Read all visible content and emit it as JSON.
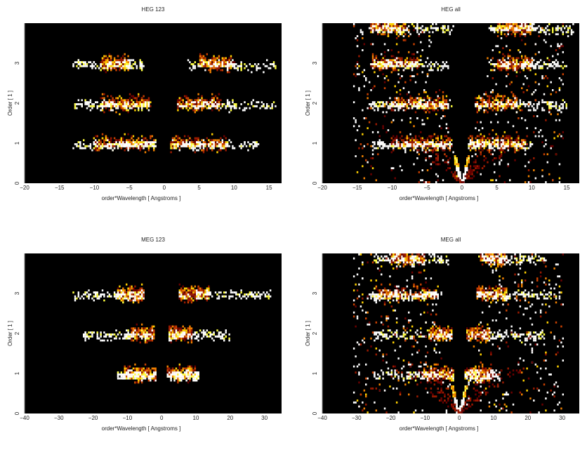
{
  "chart_data": [
    {
      "type": "heatmap",
      "title": "HEG 123",
      "xlabel": "order*Wavelength [ Angstroms ]",
      "ylabel": "Order [ 1 ]",
      "xlim": [
        -20,
        16.8
      ],
      "ylim": [
        0,
        4
      ],
      "xticks": [
        -20,
        -15,
        -10,
        -5,
        0,
        5,
        10,
        15
      ],
      "yticks": [
        0,
        1,
        2,
        3
      ],
      "wedge": false,
      "bands": [
        {
          "order": 3,
          "xmin": -13,
          "xmax": -3,
          "core": [
            -9,
            -5
          ]
        },
        {
          "order": 3,
          "xmin": 3.5,
          "xmax": 16,
          "core": [
            5,
            10
          ]
        },
        {
          "order": 2,
          "xmin": -13,
          "xmax": -2,
          "core": [
            -9,
            -2
          ]
        },
        {
          "order": 2,
          "xmin": 2,
          "xmax": 16,
          "core": [
            2,
            8
          ]
        },
        {
          "order": 1,
          "xmin": -13,
          "xmax": -1.3,
          "core": [
            -10,
            -1.3
          ]
        },
        {
          "order": 1,
          "xmin": 1,
          "xmax": 13.5,
          "core": [
            1,
            9
          ]
        }
      ]
    },
    {
      "type": "heatmap",
      "title": "HEG all",
      "xlabel": "order*Wavelength [ Angstroms ]",
      "ylabel": "Order [ 1 ]",
      "xlim": [
        -20,
        16.8
      ],
      "ylim": [
        0,
        4
      ],
      "xticks": [
        -20,
        -15,
        -10,
        -5,
        0,
        5,
        10,
        15
      ],
      "yticks": [
        0,
        1,
        2,
        3
      ],
      "wedge": true,
      "bands": [
        {
          "order": 3.9,
          "xmin": -13,
          "xmax": -1,
          "core": [
            -13,
            -8
          ]
        },
        {
          "order": 3.9,
          "xmin": 4,
          "xmax": 16,
          "core": [
            5,
            10
          ]
        },
        {
          "order": 3,
          "xmin": -13,
          "xmax": -2,
          "core": [
            -13,
            -6
          ]
        },
        {
          "order": 3,
          "xmin": 4,
          "xmax": 15,
          "core": [
            5,
            10
          ]
        },
        {
          "order": 2,
          "xmin": -13,
          "xmax": -1.5,
          "core": [
            -10,
            -2
          ]
        },
        {
          "order": 2,
          "xmin": 2,
          "xmax": 15,
          "core": [
            2,
            8
          ]
        },
        {
          "order": 1,
          "xmin": -13,
          "xmax": -1.5,
          "core": [
            -10,
            -1.5
          ]
        },
        {
          "order": 1,
          "xmin": 1,
          "xmax": 10,
          "core": [
            1,
            9
          ]
        }
      ]
    },
    {
      "type": "heatmap",
      "title": "MEG 123",
      "xlabel": "order*Wavelength [ Angstroms ]",
      "ylabel": "Order [ 1 ]",
      "xlim": [
        -40,
        35
      ],
      "ylim": [
        0,
        4
      ],
      "xticks": [
        -40,
        -30,
        -20,
        -10,
        0,
        10,
        20,
        30
      ],
      "yticks": [
        0,
        1,
        2,
        3
      ],
      "wedge": false,
      "bands": [
        {
          "order": 3,
          "xmin": -26,
          "xmax": -5,
          "core": [
            -13,
            -5
          ]
        },
        {
          "order": 3,
          "xmin": 5,
          "xmax": 32,
          "core": [
            5,
            14
          ]
        },
        {
          "order": 2,
          "xmin": -23,
          "xmax": -2,
          "core": [
            -9,
            -2
          ]
        },
        {
          "order": 2,
          "xmin": 2,
          "xmax": 20,
          "core": [
            2,
            9
          ]
        },
        {
          "order": 1,
          "xmin": -13,
          "xmax": -1.5,
          "core": [
            -11,
            -1.5
          ]
        },
        {
          "order": 1,
          "xmin": 1.5,
          "xmax": 11,
          "core": [
            1.5,
            10
          ]
        }
      ]
    },
    {
      "type": "heatmap",
      "title": "MEG all",
      "xlabel": "order*Wavelength [ Angstroms ]",
      "ylabel": "Order [ 1 ]",
      "xlim": [
        -40,
        35
      ],
      "ylim": [
        0,
        4
      ],
      "xticks": [
        -40,
        -30,
        -20,
        -10,
        0,
        10,
        20,
        30
      ],
      "yticks": [
        0,
        1,
        2,
        3
      ],
      "wedge": true,
      "bands": [
        {
          "order": 3.9,
          "xmin": -25,
          "xmax": -3,
          "core": [
            -20,
            -10
          ]
        },
        {
          "order": 3.9,
          "xmin": 5,
          "xmax": 25,
          "core": [
            6,
            14
          ]
        },
        {
          "order": 3,
          "xmin": -26,
          "xmax": -5,
          "core": [
            -25,
            -6
          ]
        },
        {
          "order": 3,
          "xmin": 5,
          "xmax": 30,
          "core": [
            5,
            14
          ]
        },
        {
          "order": 2,
          "xmin": -25,
          "xmax": -2,
          "core": [
            -9,
            -2
          ]
        },
        {
          "order": 2,
          "xmin": 2,
          "xmax": 25,
          "core": [
            2,
            9
          ]
        },
        {
          "order": 1,
          "xmin": -25,
          "xmax": -1.5,
          "core": [
            -11,
            -1.5
          ]
        },
        {
          "order": 1,
          "xmin": 1.5,
          "xmax": 12,
          "core": [
            1.5,
            10
          ]
        }
      ]
    }
  ]
}
